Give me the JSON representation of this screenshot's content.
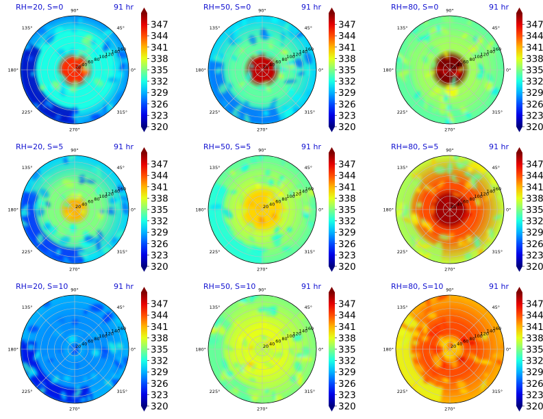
{
  "figure": {
    "background": "#ffffff",
    "title_color": "#1010d0"
  },
  "chart_data": {
    "type": "heatmap",
    "projection": "polar",
    "layout": "3x3 grid",
    "colormap": "jet",
    "angular_ticks": [
      "90°",
      "45°",
      "0°",
      "315°",
      "270°",
      "225°",
      "180°",
      "135°"
    ],
    "radial_ticks": [
      "20",
      "40",
      "60",
      "80",
      "100",
      "120",
      "140",
      "160"
    ],
    "radial_range": [
      0,
      160
    ],
    "grid": true,
    "colorbar": {
      "range": [
        320,
        350
      ],
      "ticks": [
        "347",
        "344",
        "341",
        "338",
        "335",
        "332",
        "329",
        "326",
        "323",
        "320"
      ],
      "extend": "both"
    },
    "panels": [
      {
        "title": "RH=20, S=0",
        "time": "91 hr",
        "rh": 20,
        "s": 0,
        "center_value": 345,
        "background_value": 328,
        "band_value": 332,
        "band_radius_frac": 0.7,
        "inner_radius_frac": 0.2,
        "drop_value": 322,
        "drop_center_deg": 210
      },
      {
        "title": "RH=50, S=0",
        "time": "91 hr",
        "rh": 50,
        "s": 0,
        "center_value": 348,
        "background_value": 330,
        "band_value": 334,
        "band_radius_frac": 0.55,
        "inner_radius_frac": 0.2,
        "drop_value": 327,
        "drop_center_deg": 230
      },
      {
        "title": "RH=80, S=0",
        "time": "91 hr",
        "rh": 80,
        "s": 0,
        "center_value": 350,
        "background_value": 334,
        "band_value": 336,
        "band_radius_frac": 0.5,
        "inner_radius_frac": 0.22,
        "drop_value": 334,
        "drop_center_deg": 230
      },
      {
        "title": "RH=20, S=5",
        "time": "91 hr",
        "rh": 20,
        "s": 5,
        "center_value": 341,
        "background_value": 330,
        "band_value": 335,
        "band_radius_frac": 0.5,
        "inner_radius_frac": 0.15,
        "drop_value": 325,
        "drop_center_deg": 220
      },
      {
        "title": "RH=50, S=5",
        "time": "91 hr",
        "rh": 50,
        "s": 5,
        "center_value": 340,
        "background_value": 334,
        "band_value": 337,
        "band_radius_frac": 0.45,
        "inner_radius_frac": 0.3,
        "drop_value": 332,
        "drop_center_deg": 210
      },
      {
        "title": "RH=80, S=5",
        "time": "91 hr",
        "rh": 80,
        "s": 5,
        "center_value": 349,
        "background_value": 337,
        "band_value": 344,
        "band_radius_frac": 0.5,
        "inner_radius_frac": 0.25,
        "drop_value": 336,
        "drop_center_deg": 200
      },
      {
        "title": "RH=20, S=10",
        "time": "91 hr",
        "rh": 20,
        "s": 10,
        "center_value": 329,
        "background_value": 329,
        "band_value": 328,
        "band_radius_frac": 0.6,
        "inner_radius_frac": 0.1,
        "drop_value": 323,
        "drop_center_deg": 230
      },
      {
        "title": "RH=50, S=10",
        "time": "91 hr",
        "rh": 50,
        "s": 10,
        "center_value": 337,
        "background_value": 335,
        "band_value": 338,
        "band_radius_frac": 0.4,
        "inner_radius_frac": 0.1,
        "drop_value": 334,
        "drop_center_deg": 200
      },
      {
        "title": "RH=80, S=10",
        "time": "91 hr",
        "rh": 80,
        "s": 10,
        "center_value": 340,
        "background_value": 341,
        "band_value": 344,
        "band_radius_frac": 0.5,
        "inner_radius_frac": 0.15,
        "drop_value": 338,
        "drop_center_deg": 200
      }
    ]
  }
}
